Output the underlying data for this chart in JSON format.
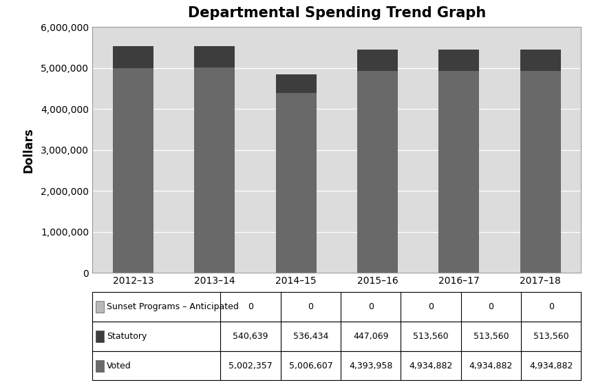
{
  "title": "Departmental Spending Trend Graph",
  "ylabel": "Dollars",
  "categories": [
    "2012–13",
    "2013–14",
    "2014–15",
    "2015–16",
    "2016–17",
    "2017–18"
  ],
  "sunset": [
    0,
    0,
    0,
    0,
    0,
    0
  ],
  "statutory": [
    540639,
    536434,
    447069,
    513560,
    513560,
    513560
  ],
  "voted": [
    5002357,
    5006607,
    4393958,
    4934882,
    4934882,
    4934882
  ],
  "color_voted": "#696969",
  "color_statutory": "#3d3d3d",
  "color_sunset": "#b8b8b8",
  "ylim": [
    0,
    6000000
  ],
  "yticks": [
    0,
    1000000,
    2000000,
    3000000,
    4000000,
    5000000,
    6000000
  ],
  "table_labels": [
    "Sunset Programs – Anticipated",
    "Statutory",
    "Voted"
  ],
  "chart_bg": "#dcdcdc",
  "outer_bg": "#ffffff",
  "title_fontsize": 15,
  "axis_label_fontsize": 11,
  "tick_fontsize": 10,
  "table_fontsize": 9,
  "bar_width": 0.5
}
